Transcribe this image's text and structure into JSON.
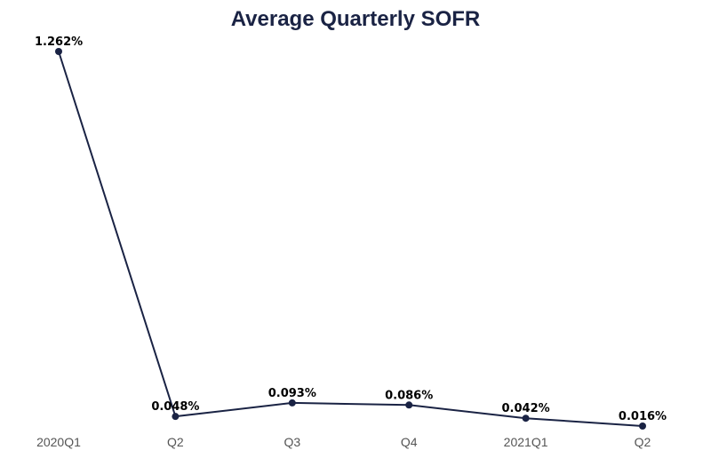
{
  "chart_data": {
    "type": "line",
    "title": "Average Quarterly SOFR",
    "categories": [
      "2020Q1",
      "Q2",
      "Q3",
      "Q4",
      "2021Q1",
      "Q2"
    ],
    "series": [
      {
        "values": [
          1.262,
          0.048,
          0.093,
          0.086,
          0.042,
          0.016
        ],
        "data_labels": [
          "1.262%",
          "0.048%",
          "0.093%",
          "0.086%",
          "0.042%",
          "0.016%"
        ]
      }
    ],
    "xlabel": "",
    "ylabel": "",
    "grid": false,
    "legend": "none"
  },
  "colors": {
    "title": "#1a2344",
    "line": "#1a2344",
    "marker": "#1a2344",
    "tick": "#555555"
  }
}
